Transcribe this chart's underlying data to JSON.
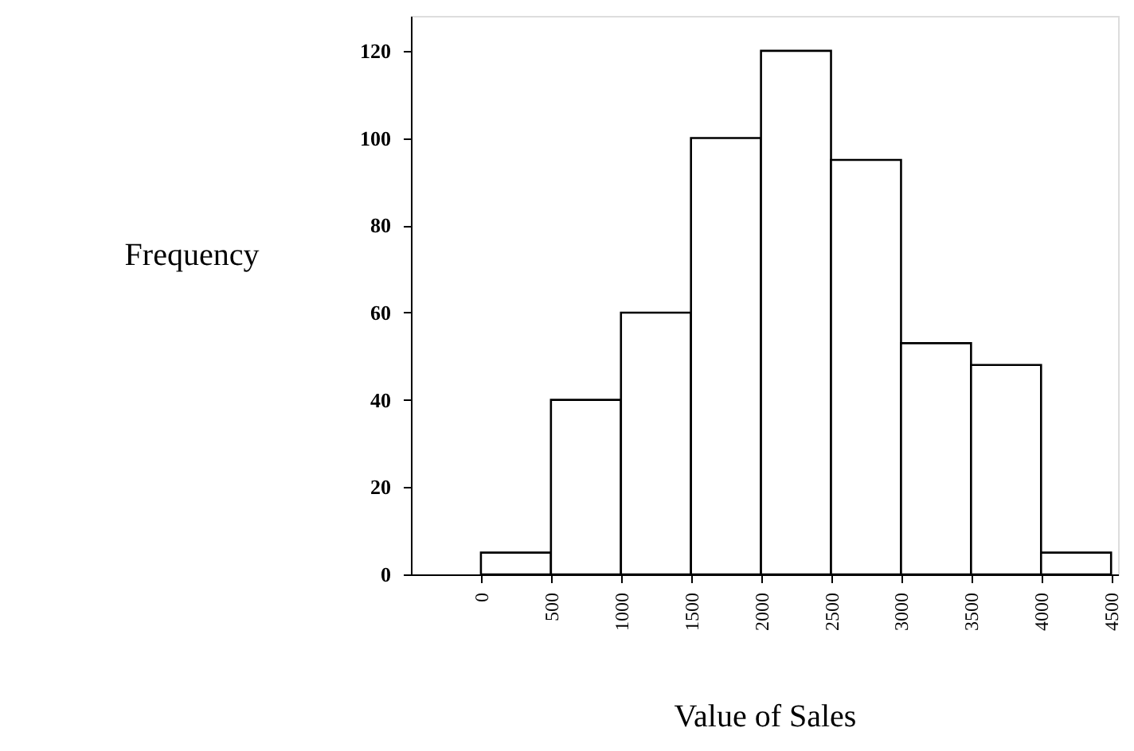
{
  "chart_data": {
    "type": "histogram",
    "xlabel": "Value of Sales",
    "ylabel": "Frequency",
    "bins": [
      0,
      500,
      1000,
      1500,
      2000,
      2500,
      3000,
      3500,
      4000,
      4500
    ],
    "values": [
      5,
      40,
      60,
      100,
      120,
      95,
      53,
      48,
      5
    ],
    "color": "#ffffff",
    "xlim": [
      -500,
      4550
    ],
    "xticks": [
      0,
      500,
      1000,
      1500,
      2000,
      2500,
      3000,
      3500,
      4000,
      4500
    ],
    "ylim": [
      0,
      128
    ],
    "yticks": [
      0,
      20,
      40,
      60,
      80,
      100,
      120
    ],
    "grid": false
  }
}
